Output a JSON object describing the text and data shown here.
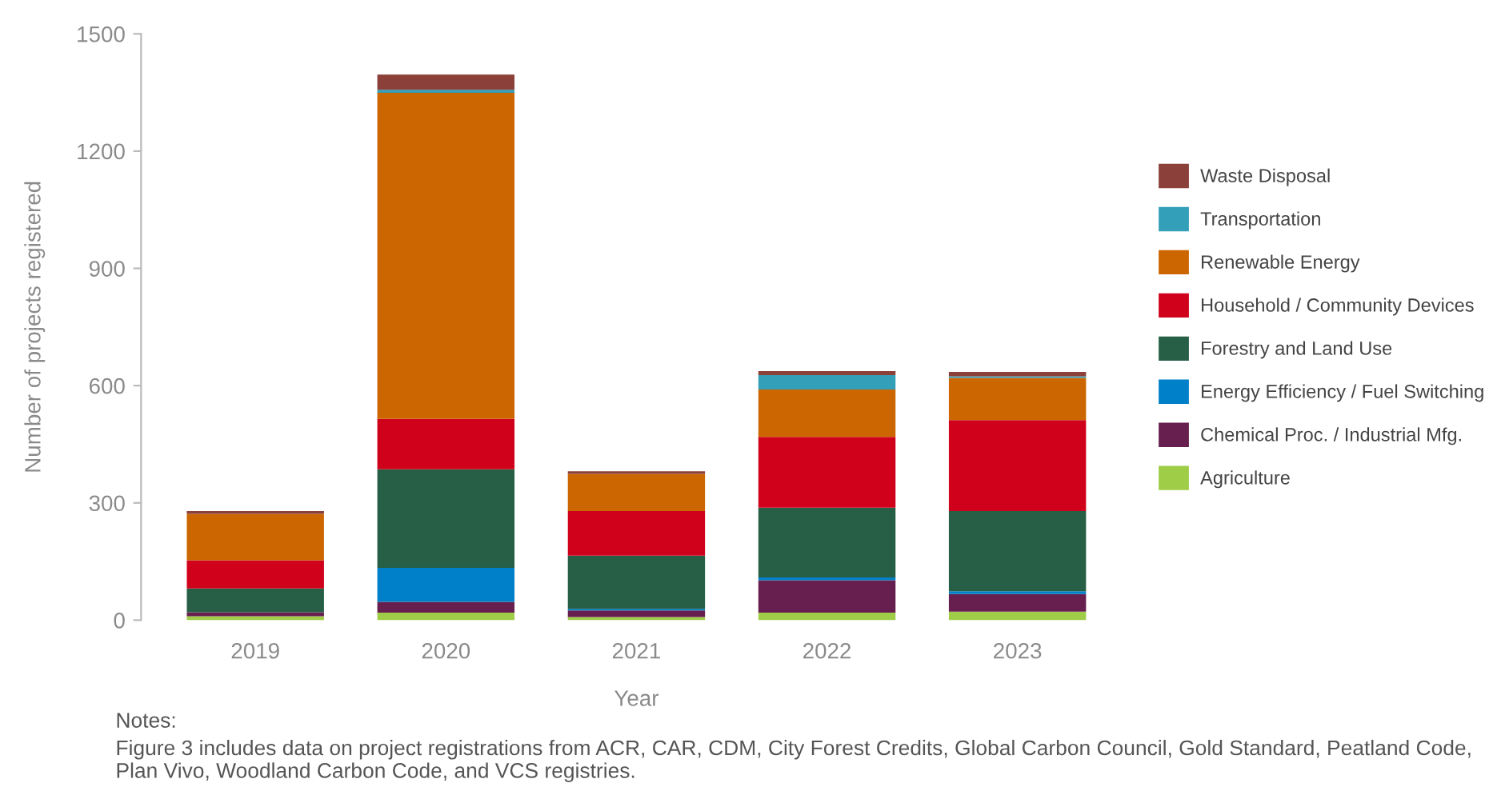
{
  "chart_data": {
    "type": "bar",
    "stacked": true,
    "xlabel": "Year",
    "ylabel": "Number of projects registered",
    "categories": [
      "2019",
      "2020",
      "2021",
      "2022",
      "2023"
    ],
    "series": [
      {
        "name": "Agriculture",
        "color": "#9fcd48",
        "values": [
          10,
          19,
          8,
          19,
          22
        ]
      },
      {
        "name": "Chemical Proc. / Industrial Mfg.",
        "color": "#661f4f",
        "values": [
          10,
          28,
          17,
          83,
          45
        ]
      },
      {
        "name": "Energy Efficiency / Fuel Switching",
        "color": "#0080c8",
        "values": [
          0,
          87,
          4,
          7,
          7
        ]
      },
      {
        "name": "Forestry and Land Use",
        "color": "#265f46",
        "values": [
          61,
          252,
          136,
          179,
          205
        ]
      },
      {
        "name": "Household / Community Devices",
        "color": "#d0021b",
        "values": [
          72,
          129,
          114,
          181,
          233
        ]
      },
      {
        "name": "Renewable Energy",
        "color": "#cc6600",
        "values": [
          119,
          834,
          95,
          121,
          108
        ]
      },
      {
        "name": "Transportation",
        "color": "#349fb8",
        "values": [
          0,
          8,
          0,
          37,
          4
        ]
      },
      {
        "name": "Waste Disposal",
        "color": "#8b4039",
        "values": [
          7,
          39,
          7,
          10,
          11
        ]
      }
    ],
    "ylim": [
      0,
      1500
    ],
    "yticks": [
      0,
      300,
      600,
      900,
      1200,
      1500
    ],
    "grid": false,
    "legend": "right",
    "annotations": [
      "Notes:",
      "Figure 3 includes data on project registrations from ACR, CAR, CDM, City Forest Credits, Global Carbon Council, Gold Standard, Peatland Code, Plan Vivo, Woodland Carbon Code, and VCS registries."
    ]
  }
}
